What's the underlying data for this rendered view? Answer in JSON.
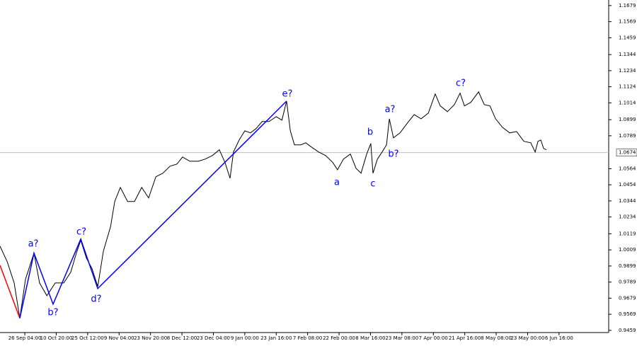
{
  "chart_data": {
    "type": "line",
    "xlim": [
      0.21,
      19.58
    ],
    "ylim": [
      0.9444,
      1.1717
    ],
    "yticks": [
      0.9459,
      0.9569,
      0.9679,
      0.9789,
      0.9899,
      1.0009,
      1.0119,
      1.0234,
      1.0344,
      1.0454,
      1.0564,
      1.0789,
      1.0899,
      1.1014,
      1.1124,
      1.1234,
      1.1344,
      1.1459,
      1.1569,
      1.1679
    ],
    "xticks": [
      {
        "value": 1,
        "label": "26 Sep 04:00"
      },
      {
        "value": 2,
        "label": "10 Oct 20:00"
      },
      {
        "value": 3,
        "label": "25 Oct 12:00"
      },
      {
        "value": 4,
        "label": "9 Nov 04:00"
      },
      {
        "value": 5,
        "label": "23 Nov 20:00"
      },
      {
        "value": 6,
        "label": "8 Dec 12:00"
      },
      {
        "value": 7,
        "label": "23 Dec 04:00"
      },
      {
        "value": 8,
        "label": "9 Jan 00:00"
      },
      {
        "value": 9,
        "label": "23 Jan 16:00"
      },
      {
        "value": 10,
        "label": "7 Feb 08:00"
      },
      {
        "value": 11,
        "label": "22 Feb 00:00"
      },
      {
        "value": 12,
        "label": "8 Mar 16:00"
      },
      {
        "value": 13,
        "label": "23 Mar 08:00"
      },
      {
        "value": 14,
        "label": "7 Apr 00:00"
      },
      {
        "value": 15,
        "label": "21 Apr 16:00"
      },
      {
        "value": 16,
        "label": "8 May 08:00"
      },
      {
        "value": 17,
        "label": "23 May 00:00"
      },
      {
        "value": 18,
        "label": "6 Jun 16:00"
      }
    ],
    "current_price": 1.0674,
    "series": [
      {
        "color": "#000000",
        "x": [
          0.21,
          0.44,
          0.66,
          0.84,
          1.02,
          1.29,
          1.47,
          1.7,
          1.97,
          2.24,
          2.46,
          2.64,
          2.78,
          2.96,
          3.14,
          3.32,
          3.5,
          3.73,
          3.86,
          4.04,
          4.27,
          4.49,
          4.72,
          4.94,
          5.17,
          5.39,
          5.62,
          5.84,
          6.02,
          6.25,
          6.52,
          6.74,
          6.97,
          7.19,
          7.37,
          7.53,
          7.64,
          7.82,
          8.0,
          8.18,
          8.36,
          8.55,
          8.77,
          9.0,
          9.18,
          9.33,
          9.45,
          9.58,
          9.78,
          9.94,
          10.12,
          10.35,
          10.57,
          10.8,
          10.95,
          11.14,
          11.36,
          11.54,
          11.7,
          11.88,
          12.01,
          12.08,
          12.22,
          12.37,
          12.51,
          12.6,
          12.73,
          12.94,
          13.16,
          13.39,
          13.61,
          13.84,
          14.06,
          14.22,
          14.45,
          14.67,
          14.85,
          14.99,
          15.19,
          15.44,
          15.62,
          15.8,
          15.98,
          16.2,
          16.43,
          16.65,
          16.88,
          17.1,
          17.24,
          17.33,
          17.42,
          17.51,
          17.6
        ],
        "values": [
          1.0035,
          0.9928,
          0.9783,
          0.9542,
          0.9808,
          0.9987,
          0.9783,
          0.9696,
          0.9783,
          0.9783,
          0.9856,
          0.9987,
          1.0074,
          0.9953,
          0.988,
          0.9759,
          1.0001,
          1.017,
          1.034,
          1.0436,
          1.034,
          1.034,
          1.0436,
          1.0364,
          1.0509,
          1.0533,
          1.0581,
          1.0596,
          1.0644,
          1.0615,
          1.0615,
          1.063,
          1.0654,
          1.0693,
          1.0606,
          1.0499,
          1.0678,
          1.076,
          1.0823,
          1.0809,
          1.0838,
          1.0886,
          1.0886,
          1.092,
          1.0896,
          1.1026,
          1.0823,
          1.0727,
          1.0727,
          1.0741,
          1.0712,
          1.0678,
          1.0654,
          1.0606,
          1.0557,
          1.063,
          1.0664,
          1.0567,
          1.0533,
          1.0664,
          1.0736,
          1.0533,
          1.063,
          1.0678,
          1.0727,
          1.0905,
          1.0775,
          1.0809,
          1.0872,
          1.0934,
          1.0905,
          1.0944,
          1.1075,
          1.0993,
          1.0954,
          1.1002,
          1.108,
          1.0993,
          1.1017,
          1.1089,
          1.1002,
          1.0993,
          1.0905,
          1.0847,
          1.0809,
          1.0818,
          1.0751,
          1.0741,
          1.0678,
          1.0751,
          1.076,
          1.0702,
          1.0693
        ]
      },
      {
        "color": "#ff0000",
        "x": [
          0.21,
          0.84
        ],
        "values": [
          0.9904,
          0.9542
        ]
      },
      {
        "color": "#0000ff",
        "x": [
          0.84,
          1.29,
          1.9,
          2.78,
          3.32,
          9.33
        ],
        "values": [
          0.9542,
          0.9987,
          0.9638,
          1.0083,
          0.9745,
          1.1026
        ]
      }
    ],
    "annotations": [
      "a?",
      "b?",
      "c?",
      "d?",
      "e?",
      "a",
      "b",
      "c",
      "a?",
      "b?",
      "c?"
    ]
  }
}
